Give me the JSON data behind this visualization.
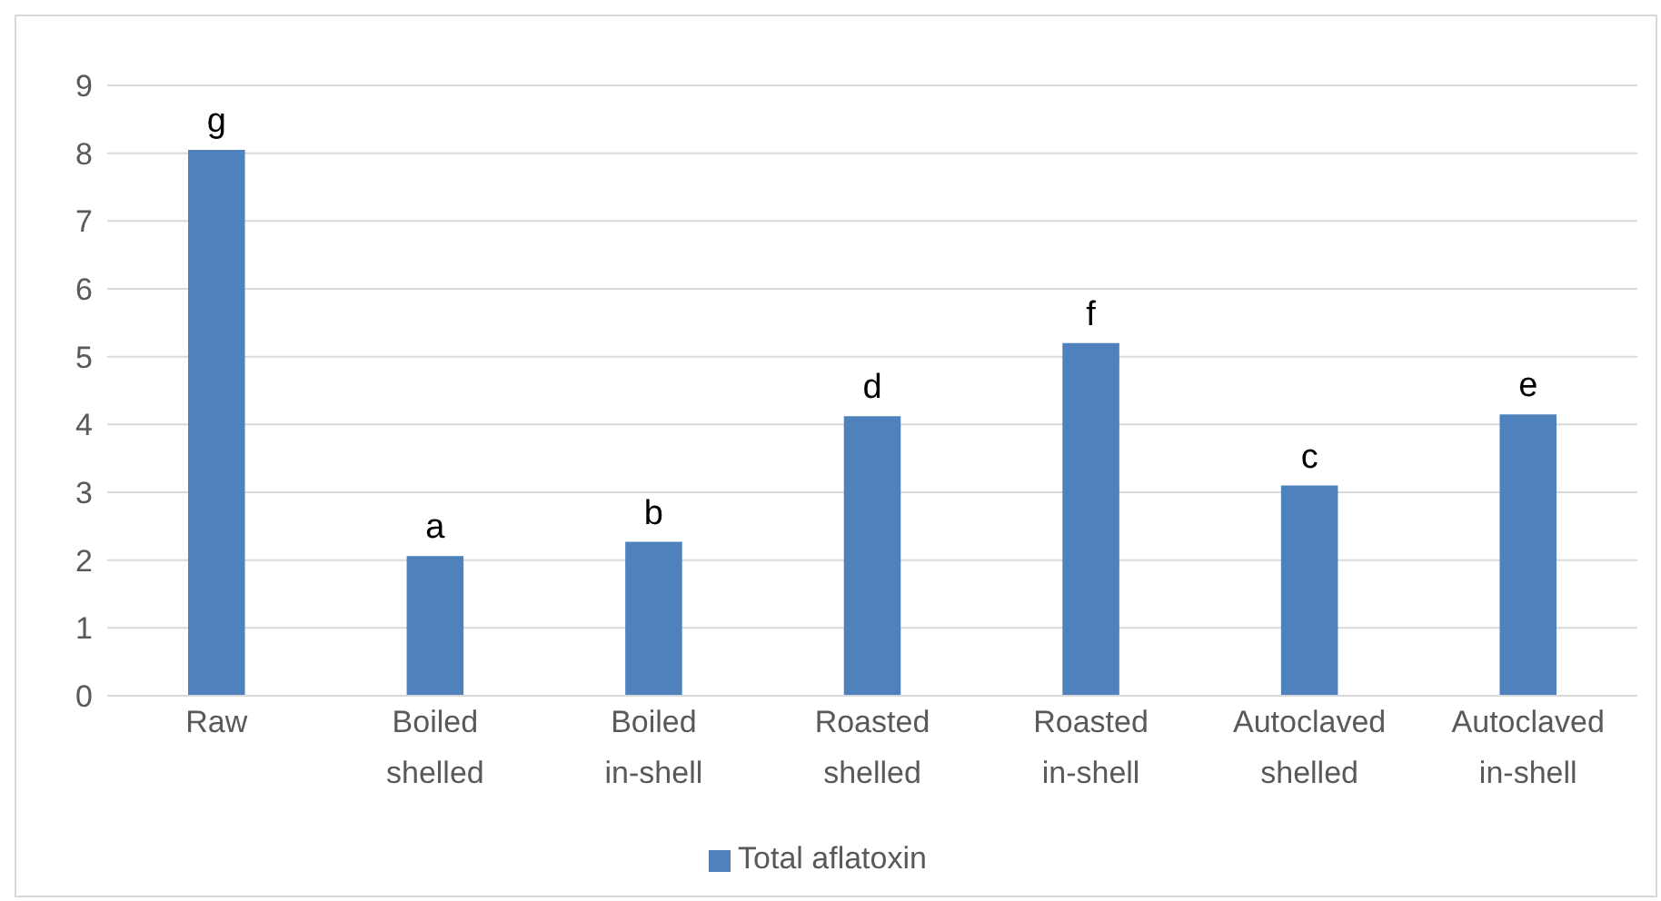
{
  "chart_data": {
    "type": "bar",
    "categories": [
      "Raw",
      "Boiled shelled",
      "Boiled in-shell",
      "Roasted shelled",
      "Roasted in-shell",
      "Autoclaved shelled",
      "Autoclaved in-shell"
    ],
    "series": [
      {
        "name": "Total aflatoxin",
        "color": "#4f81bd",
        "values": [
          8.05,
          2.06,
          2.27,
          4.12,
          5.2,
          3.1,
          4.15
        ],
        "value_labels": [
          "g",
          "a",
          "b",
          "d",
          "f",
          "c",
          "e"
        ]
      }
    ],
    "ylim": [
      0,
      9
    ],
    "yticks": [
      0,
      1,
      2,
      3,
      4,
      5,
      6,
      7,
      8,
      9
    ],
    "grid": "y",
    "legend": "bottom"
  }
}
